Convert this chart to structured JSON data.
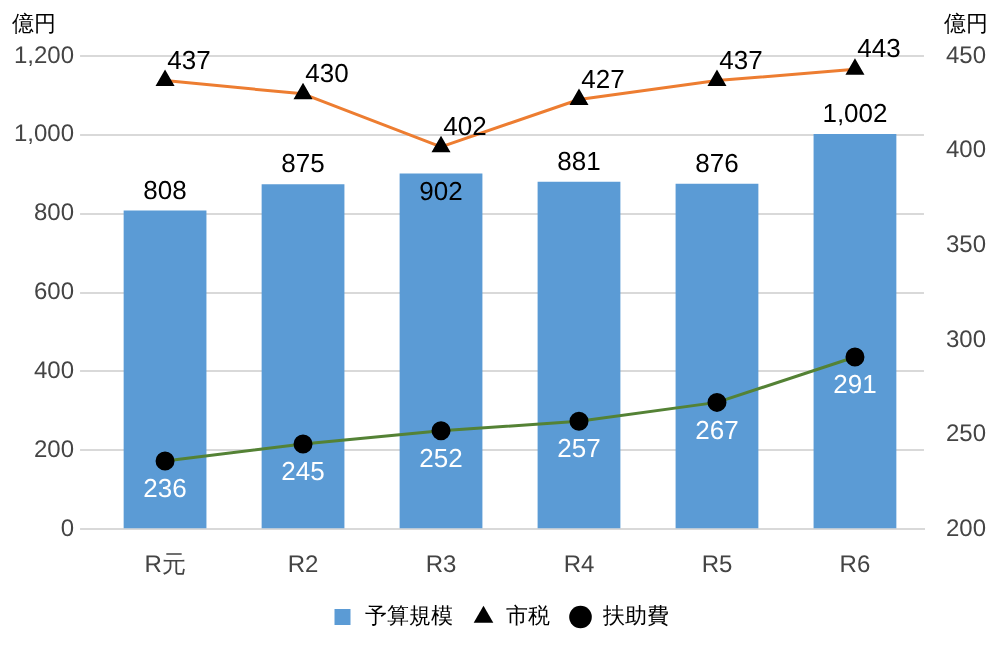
{
  "chart_data": {
    "type": "bar",
    "ylabel": "億円",
    "y2label": "億円",
    "categories": [
      "R元",
      "R2",
      "R3",
      "R4",
      "R5",
      "R6"
    ],
    "series": [
      {
        "name": "予算規模",
        "color": "#5b9bd5",
        "values": [
          808,
          875,
          902,
          881,
          876,
          1002
        ],
        "value_labels": [
          "808",
          "875",
          "902",
          "881",
          "876",
          "1,002"
        ]
      },
      {
        "name": "市税",
        "type": "line",
        "color": "#ed7d31",
        "axis": "y2",
        "marker": "triangle",
        "values": [
          437,
          430,
          402,
          427,
          437,
          443
        ]
      },
      {
        "name": "扶助費",
        "type": "line",
        "color": "#548235",
        "axis": "y2",
        "marker": "circle",
        "values": [
          236,
          245,
          252,
          257,
          267,
          291
        ]
      }
    ],
    "ylim": [
      0,
      1200
    ],
    "yticks": [
      0,
      200,
      400,
      600,
      800,
      {
        "value": 1000,
        "label": "1,000"
      },
      {
        "value": 1200,
        "label": "1,200"
      }
    ],
    "y2lim": [
      200,
      450
    ],
    "y2ticks": [
      200,
      250,
      300,
      350,
      400,
      450
    ],
    "grid": "y",
    "legend": "bottom",
    "data_labels": true
  }
}
